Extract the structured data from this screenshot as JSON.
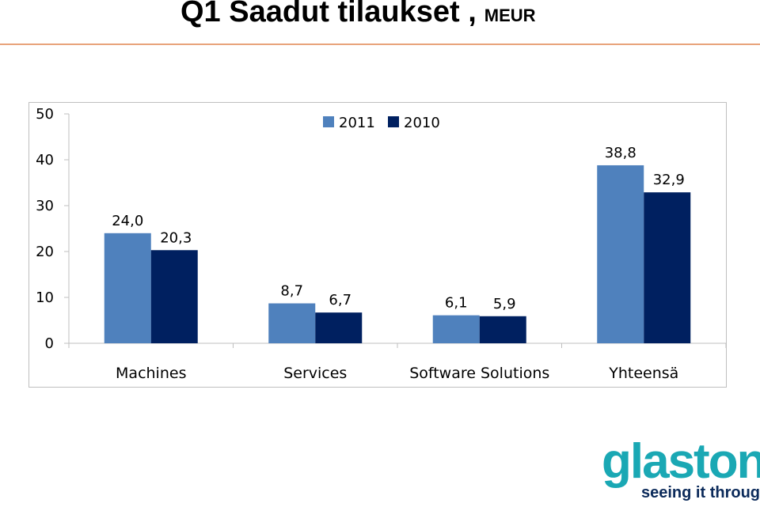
{
  "header": {
    "title": "Q1 Saadut tilaukset ,",
    "unit": "MEUR"
  },
  "chart_data": {
    "type": "bar",
    "title": "",
    "xlabel": "",
    "ylabel": "",
    "categories": [
      "Machines",
      "Services",
      "Software Solutions",
      "Yhteensä"
    ],
    "series": [
      {
        "name": "2011",
        "values": [
          24.0,
          8.7,
          6.1,
          38.8
        ],
        "labels": [
          "24,0",
          "8,7",
          "6,1",
          "38,8"
        ],
        "color": "#4f81bd"
      },
      {
        "name": "2010",
        "values": [
          20.3,
          6.7,
          5.9,
          32.9
        ],
        "labels": [
          "20,3",
          "6,7",
          "5,9",
          "32,9"
        ],
        "color": "#002060"
      }
    ],
    "ylim": [
      0,
      50
    ],
    "yticks": [
      0,
      10,
      20,
      30,
      40,
      50
    ],
    "ytick_labels": [
      "0",
      "10",
      "20",
      "30",
      "40",
      "50"
    ],
    "grid": false,
    "legend": "top-center"
  },
  "logo": {
    "wordmark": "glaston",
    "tagline": "seeing it through",
    "color": "#1aa8b4",
    "tagline_color": "#0b2a5a"
  }
}
